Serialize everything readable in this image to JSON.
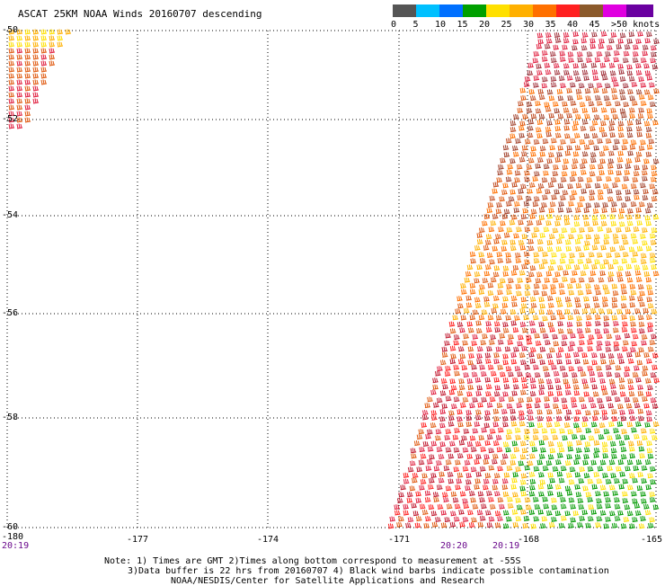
{
  "title": "ASCAT 25KM NOAA Winds 20160707 descending",
  "legend": {
    "labels": [
      "0",
      "5",
      "10",
      "15",
      "20",
      "25",
      "30",
      "35",
      "40",
      "45",
      ">50 knots"
    ],
    "colors": [
      "#555555",
      "#00c0ff",
      "#0070ff",
      "#00a000",
      "#ffe000",
      "#ffb000",
      "#ff7000",
      "#ff2020",
      "#8b5a2b",
      "#e000e0",
      "#6a00a0"
    ]
  },
  "axes": {
    "lat_labels": [
      "-50",
      "-52",
      "-54",
      "-56",
      "-58",
      "-60"
    ],
    "lon_labels": [
      "-180",
      "-177",
      "-174",
      "-171",
      "-168",
      "-165"
    ]
  },
  "times": [
    "20:19",
    "20:20",
    "20:19"
  ],
  "notes": [
    "Note: 1) Times are GMT 2)Times along bottom correspond to measurement at -55S",
    "3)Data buffer is 22 hrs from 20160707 4) Black wind barbs indicate possible contamination",
    "NOAA/NESDIS/Center for Satellite Applications and Research"
  ]
}
